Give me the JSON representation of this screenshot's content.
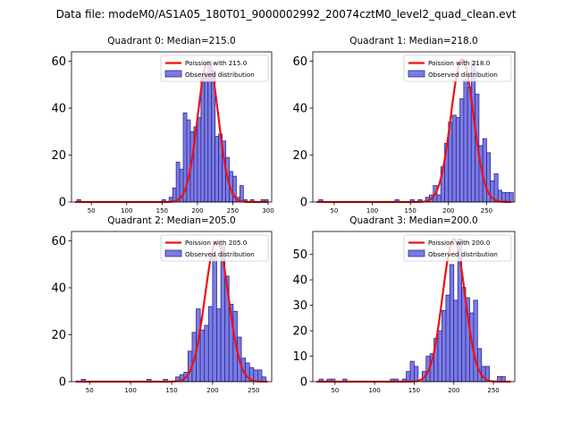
{
  "figure": {
    "suptitle": "Data file: modeM0/AS1A05_180T01_9000002992_20074cztM0_level2_quad_clean.evt"
  },
  "colors": {
    "bar_fill": "#7b7be6",
    "bar_edge": "#2a2a8c",
    "curve": "#ee1111",
    "axes": "#000000"
  },
  "chart_data": [
    {
      "type": "bar",
      "title": "Quadrant 0: Median=215.0",
      "legend": [
        "Poission with 215.0",
        "Observed distribution"
      ],
      "legend_position": "top-right",
      "xlim": [
        22,
        305
      ],
      "ylim": [
        0,
        64
      ],
      "xticks": [
        50,
        100,
        150,
        200,
        250,
        300
      ],
      "yticks": [
        0,
        20,
        40,
        60
      ],
      "bin_width": 5,
      "mu": 215,
      "curve_peak": 60,
      "bins": [
        [
          30,
          1
        ],
        [
          150,
          1
        ],
        [
          160,
          2
        ],
        [
          165,
          6
        ],
        [
          170,
          17
        ],
        [
          175,
          14
        ],
        [
          180,
          38
        ],
        [
          185,
          35
        ],
        [
          190,
          30
        ],
        [
          195,
          32
        ],
        [
          200,
          36
        ],
        [
          205,
          53
        ],
        [
          210,
          55
        ],
        [
          215,
          60
        ],
        [
          220,
          56
        ],
        [
          225,
          28
        ],
        [
          230,
          29
        ],
        [
          235,
          26
        ],
        [
          240,
          19
        ],
        [
          245,
          13
        ],
        [
          250,
          11
        ],
        [
          255,
          2
        ],
        [
          260,
          7
        ],
        [
          265,
          1
        ],
        [
          275,
          1
        ],
        [
          290,
          1
        ],
        [
          295,
          1
        ]
      ]
    },
    {
      "type": "bar",
      "title": "Quadrant 1: Median=218.0",
      "legend": [
        "Poission with 218.0",
        "Observed distribution"
      ],
      "legend_position": "top-right",
      "xlim": [
        22,
        287
      ],
      "ylim": [
        0,
        64
      ],
      "xticks": [
        50,
        100,
        150,
        200,
        250
      ],
      "yticks": [
        0,
        20,
        40,
        60
      ],
      "bin_width": 5,
      "mu": 218,
      "curve_peak": 61,
      "bins": [
        [
          30,
          1
        ],
        [
          130,
          1
        ],
        [
          150,
          1
        ],
        [
          160,
          1
        ],
        [
          170,
          2
        ],
        [
          175,
          3
        ],
        [
          180,
          7
        ],
        [
          185,
          3
        ],
        [
          190,
          15
        ],
        [
          195,
          25
        ],
        [
          200,
          34
        ],
        [
          205,
          37
        ],
        [
          210,
          36
        ],
        [
          215,
          44
        ],
        [
          220,
          52
        ],
        [
          225,
          49
        ],
        [
          230,
          60
        ],
        [
          235,
          46
        ],
        [
          240,
          24
        ],
        [
          245,
          27
        ],
        [
          250,
          21
        ],
        [
          255,
          9
        ],
        [
          260,
          12
        ],
        [
          265,
          5
        ],
        [
          270,
          4
        ],
        [
          275,
          4
        ],
        [
          280,
          4
        ]
      ]
    },
    {
      "type": "bar",
      "title": "Quadrant 2: Median=205.0",
      "legend": [
        "Poission with 205.0",
        "Observed distribution"
      ],
      "legend_position": "top-right",
      "xlim": [
        28,
        272
      ],
      "ylim": [
        0,
        64
      ],
      "xticks": [
        50,
        100,
        150,
        200,
        250
      ],
      "yticks": [
        0,
        20,
        40,
        60
      ],
      "bin_width": 5,
      "mu": 205,
      "curve_peak": 60,
      "bins": [
        [
          40,
          1
        ],
        [
          120,
          1
        ],
        [
          140,
          1
        ],
        [
          155,
          2
        ],
        [
          160,
          3
        ],
        [
          165,
          4
        ],
        [
          170,
          13
        ],
        [
          175,
          21
        ],
        [
          180,
          31
        ],
        [
          185,
          22
        ],
        [
          190,
          24
        ],
        [
          195,
          32
        ],
        [
          200,
          54
        ],
        [
          205,
          31
        ],
        [
          210,
          58
        ],
        [
          215,
          45
        ],
        [
          220,
          33
        ],
        [
          225,
          30
        ],
        [
          230,
          19
        ],
        [
          235,
          10
        ],
        [
          240,
          8
        ],
        [
          245,
          6
        ],
        [
          250,
          5
        ],
        [
          255,
          5
        ],
        [
          260,
          2
        ]
      ]
    },
    {
      "type": "bar",
      "title": "Quadrant 3: Median=200.0",
      "legend": [
        "Poission with 200.0",
        "Observed distribution"
      ],
      "legend_position": "top-right",
      "xlim": [
        22,
        277
      ],
      "ylim": [
        0,
        59
      ],
      "xticks": [
        50,
        100,
        150,
        200,
        250
      ],
      "yticks": [
        0,
        10,
        20,
        30,
        40,
        50
      ],
      "bin_width": 5,
      "mu": 200,
      "curve_peak": 56,
      "bins": [
        [
          30,
          1
        ],
        [
          40,
          1
        ],
        [
          45,
          1
        ],
        [
          60,
          1
        ],
        [
          120,
          1
        ],
        [
          125,
          1
        ],
        [
          135,
          1
        ],
        [
          140,
          4
        ],
        [
          145,
          8
        ],
        [
          150,
          6
        ],
        [
          160,
          4
        ],
        [
          165,
          10
        ],
        [
          170,
          11
        ],
        [
          175,
          17
        ],
        [
          180,
          20
        ],
        [
          185,
          28
        ],
        [
          190,
          34
        ],
        [
          195,
          46
        ],
        [
          200,
          32
        ],
        [
          205,
          56
        ],
        [
          210,
          37
        ],
        [
          215,
          33
        ],
        [
          220,
          27
        ],
        [
          225,
          32
        ],
        [
          230,
          13
        ],
        [
          235,
          6
        ],
        [
          240,
          6
        ],
        [
          255,
          2
        ],
        [
          260,
          2
        ]
      ]
    }
  ]
}
